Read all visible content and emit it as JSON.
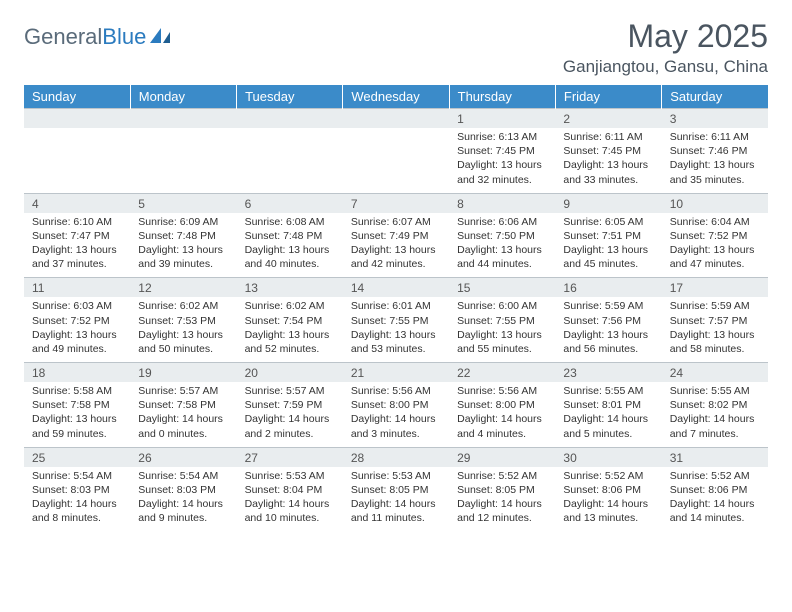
{
  "brand": {
    "part1": "General",
    "part2": "Blue"
  },
  "title": "May 2025",
  "location": "Ganjiangtou, Gansu, China",
  "colors": {
    "header_bg": "#3b8bc9",
    "daynum_bg": "#e9edef",
    "border": "#bcc4ca",
    "text_muted": "#4a5560"
  },
  "day_headers": [
    "Sunday",
    "Monday",
    "Tuesday",
    "Wednesday",
    "Thursday",
    "Friday",
    "Saturday"
  ],
  "weeks": [
    {
      "nums": [
        "",
        "",
        "",
        "",
        "1",
        "2",
        "3"
      ],
      "details": [
        null,
        null,
        null,
        null,
        {
          "sunrise": "6:13 AM",
          "sunset": "7:45 PM",
          "dl1": "Daylight: 13 hours",
          "dl2": "and 32 minutes."
        },
        {
          "sunrise": "6:11 AM",
          "sunset": "7:45 PM",
          "dl1": "Daylight: 13 hours",
          "dl2": "and 33 minutes."
        },
        {
          "sunrise": "6:11 AM",
          "sunset": "7:46 PM",
          "dl1": "Daylight: 13 hours",
          "dl2": "and 35 minutes."
        }
      ]
    },
    {
      "nums": [
        "4",
        "5",
        "6",
        "7",
        "8",
        "9",
        "10"
      ],
      "details": [
        {
          "sunrise": "6:10 AM",
          "sunset": "7:47 PM",
          "dl1": "Daylight: 13 hours",
          "dl2": "and 37 minutes."
        },
        {
          "sunrise": "6:09 AM",
          "sunset": "7:48 PM",
          "dl1": "Daylight: 13 hours",
          "dl2": "and 39 minutes."
        },
        {
          "sunrise": "6:08 AM",
          "sunset": "7:48 PM",
          "dl1": "Daylight: 13 hours",
          "dl2": "and 40 minutes."
        },
        {
          "sunrise": "6:07 AM",
          "sunset": "7:49 PM",
          "dl1": "Daylight: 13 hours",
          "dl2": "and 42 minutes."
        },
        {
          "sunrise": "6:06 AM",
          "sunset": "7:50 PM",
          "dl1": "Daylight: 13 hours",
          "dl2": "and 44 minutes."
        },
        {
          "sunrise": "6:05 AM",
          "sunset": "7:51 PM",
          "dl1": "Daylight: 13 hours",
          "dl2": "and 45 minutes."
        },
        {
          "sunrise": "6:04 AM",
          "sunset": "7:52 PM",
          "dl1": "Daylight: 13 hours",
          "dl2": "and 47 minutes."
        }
      ]
    },
    {
      "nums": [
        "11",
        "12",
        "13",
        "14",
        "15",
        "16",
        "17"
      ],
      "details": [
        {
          "sunrise": "6:03 AM",
          "sunset": "7:52 PM",
          "dl1": "Daylight: 13 hours",
          "dl2": "and 49 minutes."
        },
        {
          "sunrise": "6:02 AM",
          "sunset": "7:53 PM",
          "dl1": "Daylight: 13 hours",
          "dl2": "and 50 minutes."
        },
        {
          "sunrise": "6:02 AM",
          "sunset": "7:54 PM",
          "dl1": "Daylight: 13 hours",
          "dl2": "and 52 minutes."
        },
        {
          "sunrise": "6:01 AM",
          "sunset": "7:55 PM",
          "dl1": "Daylight: 13 hours",
          "dl2": "and 53 minutes."
        },
        {
          "sunrise": "6:00 AM",
          "sunset": "7:55 PM",
          "dl1": "Daylight: 13 hours",
          "dl2": "and 55 minutes."
        },
        {
          "sunrise": "5:59 AM",
          "sunset": "7:56 PM",
          "dl1": "Daylight: 13 hours",
          "dl2": "and 56 minutes."
        },
        {
          "sunrise": "5:59 AM",
          "sunset": "7:57 PM",
          "dl1": "Daylight: 13 hours",
          "dl2": "and 58 minutes."
        }
      ]
    },
    {
      "nums": [
        "18",
        "19",
        "20",
        "21",
        "22",
        "23",
        "24"
      ],
      "details": [
        {
          "sunrise": "5:58 AM",
          "sunset": "7:58 PM",
          "dl1": "Daylight: 13 hours",
          "dl2": "and 59 minutes."
        },
        {
          "sunrise": "5:57 AM",
          "sunset": "7:58 PM",
          "dl1": "Daylight: 14 hours",
          "dl2": "and 0 minutes."
        },
        {
          "sunrise": "5:57 AM",
          "sunset": "7:59 PM",
          "dl1": "Daylight: 14 hours",
          "dl2": "and 2 minutes."
        },
        {
          "sunrise": "5:56 AM",
          "sunset": "8:00 PM",
          "dl1": "Daylight: 14 hours",
          "dl2": "and 3 minutes."
        },
        {
          "sunrise": "5:56 AM",
          "sunset": "8:00 PM",
          "dl1": "Daylight: 14 hours",
          "dl2": "and 4 minutes."
        },
        {
          "sunrise": "5:55 AM",
          "sunset": "8:01 PM",
          "dl1": "Daylight: 14 hours",
          "dl2": "and 5 minutes."
        },
        {
          "sunrise": "5:55 AM",
          "sunset": "8:02 PM",
          "dl1": "Daylight: 14 hours",
          "dl2": "and 7 minutes."
        }
      ]
    },
    {
      "nums": [
        "25",
        "26",
        "27",
        "28",
        "29",
        "30",
        "31"
      ],
      "details": [
        {
          "sunrise": "5:54 AM",
          "sunset": "8:03 PM",
          "dl1": "Daylight: 14 hours",
          "dl2": "and 8 minutes."
        },
        {
          "sunrise": "5:54 AM",
          "sunset": "8:03 PM",
          "dl1": "Daylight: 14 hours",
          "dl2": "and 9 minutes."
        },
        {
          "sunrise": "5:53 AM",
          "sunset": "8:04 PM",
          "dl1": "Daylight: 14 hours",
          "dl2": "and 10 minutes."
        },
        {
          "sunrise": "5:53 AM",
          "sunset": "8:05 PM",
          "dl1": "Daylight: 14 hours",
          "dl2": "and 11 minutes."
        },
        {
          "sunrise": "5:52 AM",
          "sunset": "8:05 PM",
          "dl1": "Daylight: 14 hours",
          "dl2": "and 12 minutes."
        },
        {
          "sunrise": "5:52 AM",
          "sunset": "8:06 PM",
          "dl1": "Daylight: 14 hours",
          "dl2": "and 13 minutes."
        },
        {
          "sunrise": "5:52 AM",
          "sunset": "8:06 PM",
          "dl1": "Daylight: 14 hours",
          "dl2": "and 14 minutes."
        }
      ]
    }
  ],
  "labels": {
    "sunrise": "Sunrise: ",
    "sunset": "Sunset: "
  }
}
